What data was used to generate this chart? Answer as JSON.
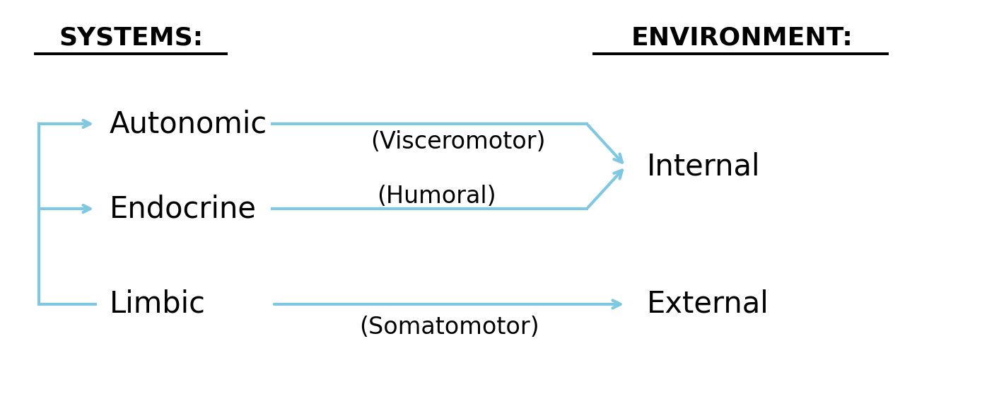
{
  "bg_color": "#ffffff",
  "arrow_color": "#7ec8e3",
  "line_width": 3.0,
  "header_color": "#000000",
  "text_color": "#000000",
  "systems_header": "SYSTEMS:",
  "environment_header": "ENVIRONMENT:",
  "systems_items": [
    "Autonomic",
    "Endocrine",
    "Limbic"
  ],
  "environment_items": [
    "Internal",
    "External"
  ],
  "pathway_labels": [
    "(Visceromotor)",
    "(Humoral)",
    "(Somatomotor)"
  ],
  "header_fontsize": 26,
  "label_fontsize": 30,
  "pathway_fontsize": 24
}
